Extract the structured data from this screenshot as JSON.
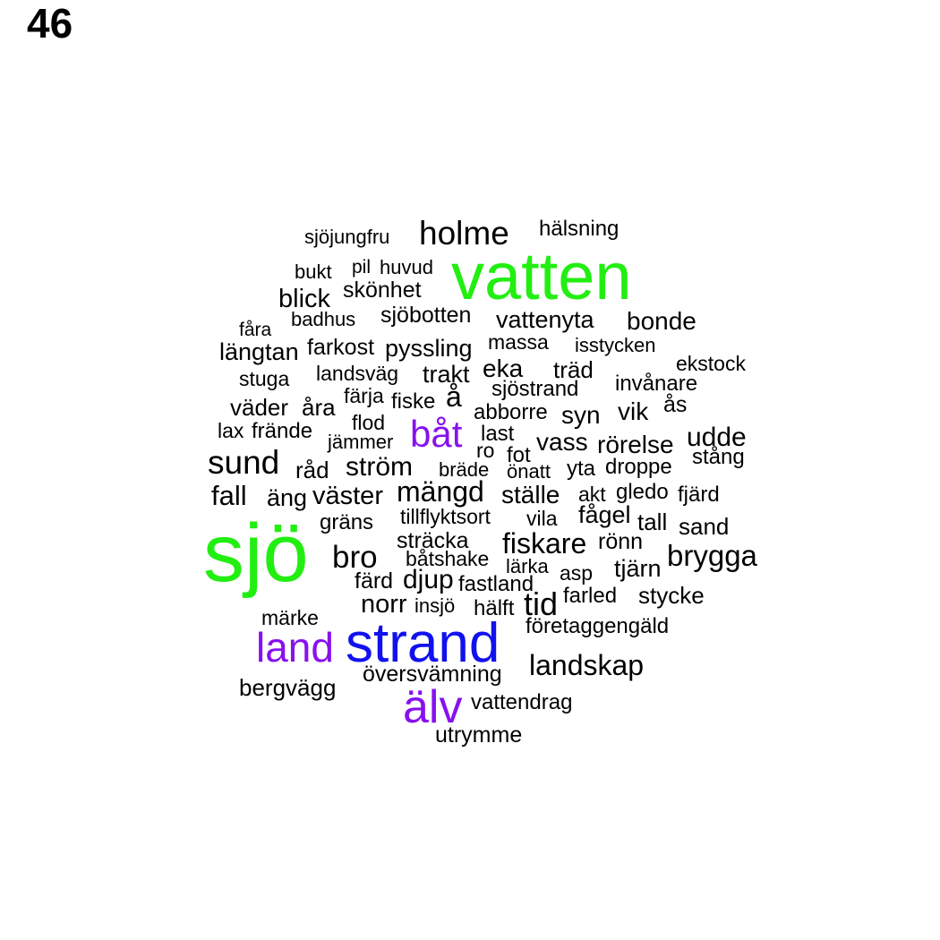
{
  "panel_number": "46",
  "colors": {
    "black": "#000000",
    "green": "#22ee11",
    "purple": "#8811ee",
    "blue": "#1111ee"
  },
  "words": {
    "vatten": "vatten",
    "sjo": "sjö",
    "strand": "strand",
    "land": "land",
    "alv": "älv",
    "bat": "båt",
    "holme": "holme",
    "sjojungfru": "sjöjungfru",
    "halsning": "hälsning",
    "bukt": "bukt",
    "pil": "pil",
    "huvud": "huvud",
    "skonhet": "skönhet",
    "blick": "blick",
    "badhus": "badhus",
    "sjobotten": "sjöbotten",
    "vattenyta": "vattenyta",
    "bonde": "bonde",
    "fara": "fåra",
    "langtan": "längtan",
    "farkost": "farkost",
    "pyssling": "pyssling",
    "massa": "massa",
    "isstycken": "isstycken",
    "ekstock": "ekstock",
    "stuga": "stuga",
    "landsvag": "landsväg",
    "trakt": "trakt",
    "eka": "eka",
    "trad": "träd",
    "invanare": "invånare",
    "farja": "färja",
    "fiske": "fiske",
    "a": "å",
    "sjostrand": "sjöstrand",
    "vader": "väder",
    "ara": "åra",
    "abborre": "abborre",
    "syn": "syn",
    "vik": "vik",
    "as": "ås",
    "flod": "flod",
    "lax": "lax",
    "frande": "frände",
    "jammer": "jämmer",
    "last": "last",
    "vass": "vass",
    "rorelse": "rörelse",
    "udde": "udde",
    "ro": "ro",
    "fot": "fot",
    "stang": "stång",
    "sund": "sund",
    "rad": "råd",
    "strom": "ström",
    "brade": "bräde",
    "onatt": "önatt",
    "yta": "yta",
    "droppe": "droppe",
    "fall": "fall",
    "ang": "äng",
    "vaster": "väster",
    "mangd": "mängd",
    "stalle": "ställe",
    "akt": "akt",
    "gledo": "gledo",
    "fjard": "fjärd",
    "grans": "gräns",
    "tillflyktsort": "tillflyktsort",
    "vila": "vila",
    "fagel": "fågel",
    "tall": "tall",
    "sand": "sand",
    "stracka": "sträcka",
    "fiskare": "fiskare",
    "ronn": "rönn",
    "bro": "bro",
    "batshake": "båtshake",
    "larka": "lärka",
    "brygga": "brygga",
    "asp": "asp",
    "tjarn": "tjärn",
    "fard": "färd",
    "djup": "djup",
    "fastland": "fastland",
    "tid": "tid",
    "farled": "farled",
    "stycke": "stycke",
    "norr": "norr",
    "insjo": "insjö",
    "halft": "hälft",
    "marke": "märke",
    "foretaggengald": "företaggengäld",
    "landskap": "landskap",
    "oversvamning": "översvämning",
    "bergvagg": "bergvägg",
    "vattendrag": "vattendrag",
    "utrymme": "utrymme"
  }
}
